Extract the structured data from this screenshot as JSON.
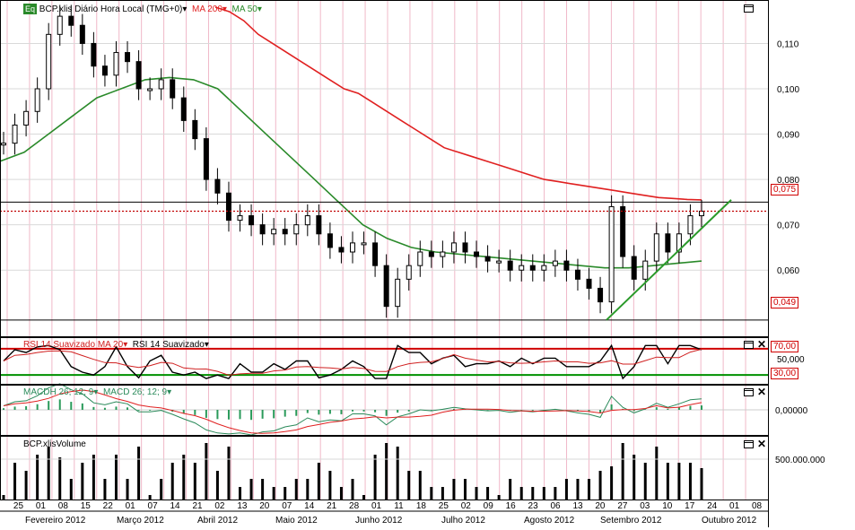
{
  "colors": {
    "grid_v": "#f0b8c8",
    "grid_h": "#d9d9d9",
    "ma200": "#e02020",
    "ma50": "#2a8a2a",
    "price": "#000000",
    "trend": "#2a9a2a",
    "rsi_upper": "#d00000",
    "rsi_lower": "#009000",
    "macd_hist": "#2a9a5a"
  },
  "header": {
    "eq_badge": "Eq",
    "instrument": "BCP.xlis Diário Hora Local (TMG+0)",
    "ma200_label": "MA 200",
    "ma50_label": "MA 50"
  },
  "price_axis": {
    "ticks": [
      "0,110",
      "0,100",
      "0,090",
      "0,080",
      "0,070",
      "0,060"
    ],
    "tag_ma200": "0,075",
    "tag_support": "0,049",
    "partial_tag": "0,073"
  },
  "rsi": {
    "label_smoothed_ma": "RSI 14 Suavizado MA 20",
    "label_smoothed": "RSI 14 Suavizado",
    "upper": "70,00",
    "mid": "50,000",
    "lower": "30,00"
  },
  "macd": {
    "label_hist": "MACDH 26; 12; 9",
    "label_macd": "MACD 26; 12; 9",
    "zero": "0,00000"
  },
  "volume": {
    "label": "BCP.xlisVolume",
    "tick": "500.000.000"
  },
  "x_axis": {
    "days": [
      "25",
      "01",
      "08",
      "15",
      "22",
      "01",
      "07",
      "14",
      "21",
      "02",
      "13",
      "20",
      "07",
      "14",
      "21",
      "28",
      "01",
      "11",
      "18",
      "25",
      "02",
      "09",
      "16",
      "23",
      "06",
      "13",
      "20",
      "27",
      "03",
      "10",
      "17",
      "24",
      "01",
      "08"
    ],
    "months": [
      "Fevereiro 2012",
      "Março 2012",
      "Abril 2012",
      "Maio 2012",
      "Junho 2012",
      "Julho 2012",
      "Agosto 2012",
      "Setembro 2012",
      "Outubro 2012"
    ]
  },
  "chart_data": {
    "type": "candlestick",
    "title": "BCP.xlis Diário Hora Local (TMG+0)",
    "ylim": [
      0.046,
      0.118
    ],
    "x_tick_labels": [
      "25",
      "01",
      "08",
      "15",
      "22",
      "01",
      "07",
      "14",
      "21",
      "02",
      "13",
      "20",
      "07",
      "14",
      "21",
      "28",
      "01",
      "11",
      "18",
      "25",
      "02",
      "09",
      "16",
      "23",
      "06",
      "13",
      "20",
      "27",
      "03",
      "10",
      "17",
      "24",
      "01",
      "08"
    ],
    "months": [
      "Fevereiro 2012",
      "Março 2012",
      "Abril 2012",
      "Maio 2012",
      "Junho 2012",
      "Julho 2012",
      "Agosto 2012",
      "Setembro 2012",
      "Outubro 2012"
    ],
    "close_series": [
      0.088,
      0.092,
      0.095,
      0.1,
      0.112,
      0.116,
      0.114,
      0.11,
      0.105,
      0.103,
      0.108,
      0.106,
      0.1,
      0.1,
      0.102,
      0.098,
      0.093,
      0.089,
      0.08,
      0.077,
      0.071,
      0.072,
      0.07,
      0.068,
      0.069,
      0.068,
      0.07,
      0.072,
      0.068,
      0.065,
      0.064,
      0.066,
      0.066,
      0.061,
      0.052,
      0.058,
      0.061,
      0.064,
      0.063,
      0.064,
      0.066,
      0.064,
      0.063,
      0.062,
      0.062,
      0.06,
      0.061,
      0.06,
      0.061,
      0.062,
      0.06,
      0.058,
      0.056,
      0.053,
      0.074,
      0.063,
      0.058,
      0.062,
      0.068,
      0.064,
      0.068,
      0.072,
      0.073
    ],
    "ma200": [
      0.118,
      0.117,
      0.115,
      0.112,
      0.11,
      0.108,
      0.106,
      0.104,
      0.102,
      0.1,
      0.099,
      0.097,
      0.095,
      0.093,
      0.091,
      0.089,
      0.087,
      0.086,
      0.085,
      0.084,
      0.083,
      0.082,
      0.081,
      0.08,
      0.0795,
      0.079,
      0.0785,
      0.078,
      0.0775,
      0.077,
      0.0765,
      0.076,
      0.0758,
      0.0756,
      0.0755
    ],
    "ma50": [
      0.084,
      0.086,
      0.09,
      0.094,
      0.098,
      0.1,
      0.102,
      0.1025,
      0.102,
      0.1,
      0.095,
      0.09,
      0.085,
      0.08,
      0.075,
      0.07,
      0.067,
      0.065,
      0.064,
      0.0635,
      0.063,
      0.0625,
      0.062,
      0.0615,
      0.061,
      0.0605,
      0.0605,
      0.061,
      0.0615,
      0.062
    ],
    "horizontal_levels": [
      0.075,
      0.073,
      0.049
    ],
    "trendline": [
      [
        0.049,
        0.075
      ]
    ],
    "rsi": {
      "upper": 70,
      "mid": 50,
      "lower": 30
    },
    "volume_ticks": [
      "500.000.000"
    ]
  }
}
